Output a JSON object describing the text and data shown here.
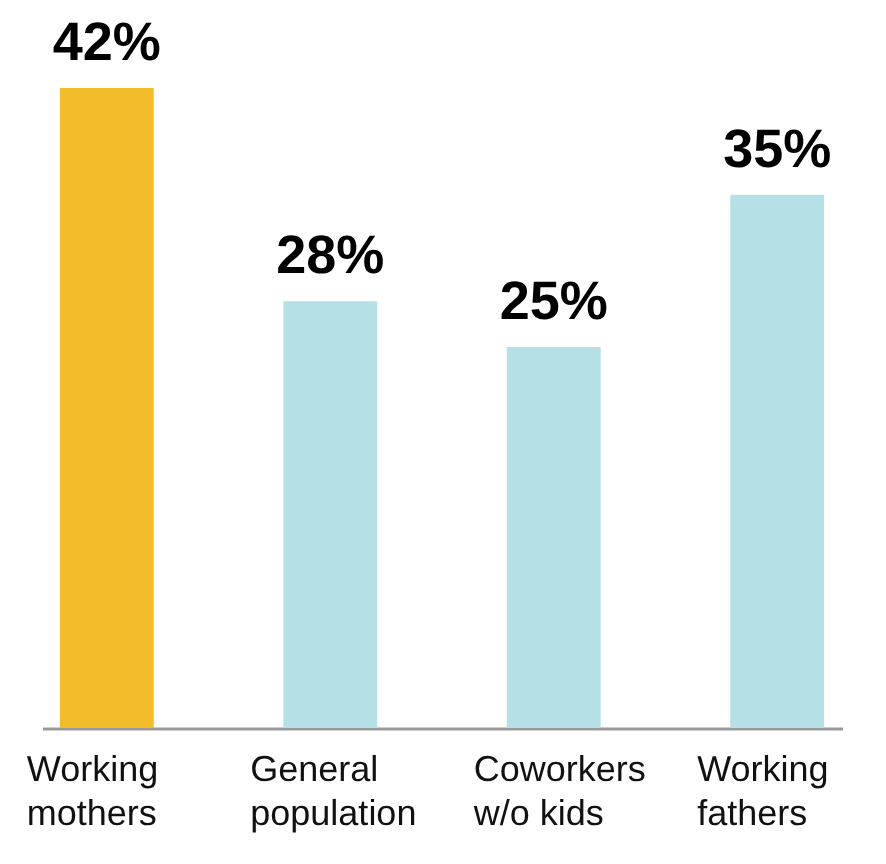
{
  "chart_data": {
    "type": "bar",
    "categories": [
      "Working mothers",
      "General population",
      "Coworkers w/o kids",
      "Working fathers"
    ],
    "values": [
      42,
      28,
      25,
      35
    ],
    "colors": [
      "#f2bd2a",
      "#b5e1e6",
      "#b5e1e6",
      "#b5e1e6"
    ],
    "value_labels": [
      "42%",
      "28%",
      "25%",
      "35%"
    ],
    "grid": false
  }
}
